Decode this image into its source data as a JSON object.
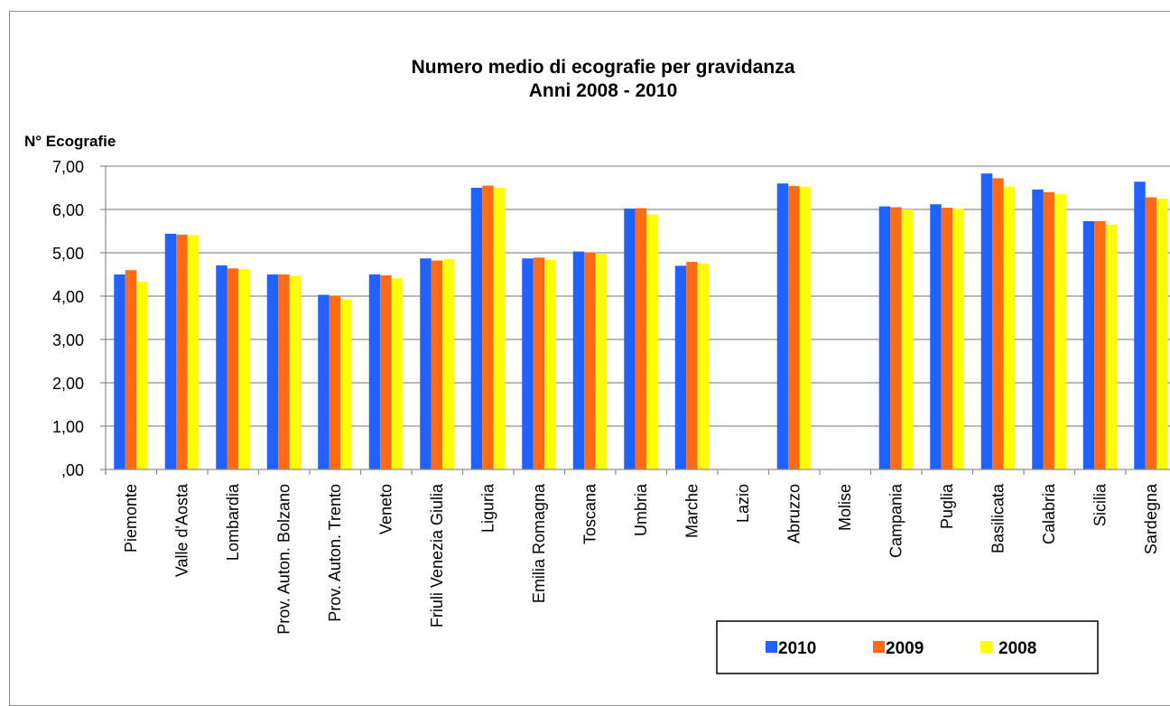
{
  "chart_data": {
    "type": "bar",
    "title": "Numero medio di ecografie per gravidanza",
    "subtitle": "Anni 2008 - 2010",
    "ylabel": "N° Ecografie",
    "xlabel": "",
    "ylim": [
      0,
      7
    ],
    "yticks": [
      ",00",
      "1,00",
      "2,00",
      "3,00",
      "4,00",
      "5,00",
      "6,00",
      "7,00"
    ],
    "grid": true,
    "legend_position": "bottom-right",
    "categories": [
      "Piemonte",
      "Valle d'Aosta",
      "Lombardia",
      "Prov. Auton. Bolzano",
      "Prov. Auton. Trento",
      "Veneto",
      "Friuli Venezia Giulia",
      "Liguria",
      "Emilia Romagna",
      "Toscana",
      "Umbria",
      "Marche",
      "Lazio",
      "Abruzzo",
      "Molise",
      "Campania",
      "Puglia",
      "Basilicata",
      "Calabria",
      "Sicilia",
      "Sardegna"
    ],
    "series": [
      {
        "name": "2010",
        "color": "#1f62ff",
        "values": [
          4.5,
          5.44,
          4.71,
          4.5,
          4.03,
          4.5,
          4.87,
          6.5,
          4.87,
          5.03,
          6.02,
          4.7,
          null,
          6.6,
          null,
          6.07,
          6.12,
          6.83,
          6.46,
          5.73,
          6.64
        ]
      },
      {
        "name": "2009",
        "color": "#ff6a13",
        "values": [
          4.6,
          5.42,
          4.64,
          4.5,
          4.01,
          4.48,
          4.82,
          6.55,
          4.89,
          5.01,
          6.03,
          4.79,
          null,
          6.54,
          null,
          6.05,
          6.04,
          6.72,
          6.4,
          5.73,
          6.28
        ]
      },
      {
        "name": "2008",
        "color": "#ffff00",
        "values": [
          4.33,
          5.41,
          4.62,
          4.47,
          3.92,
          4.41,
          4.85,
          6.5,
          4.84,
          4.97,
          5.88,
          4.75,
          null,
          6.52,
          null,
          6.0,
          6.02,
          6.53,
          6.35,
          5.65,
          6.25
        ]
      }
    ]
  }
}
